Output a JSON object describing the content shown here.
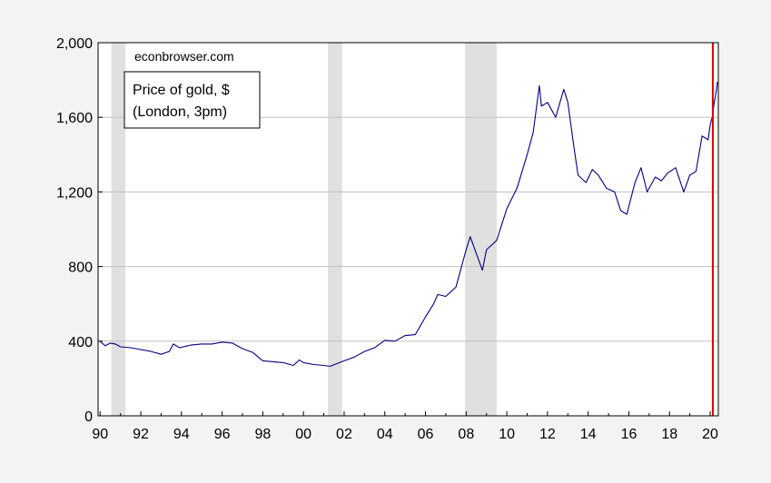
{
  "chart_data": {
    "type": "line",
    "title": "",
    "xlabel": "",
    "ylabel": "",
    "xlim": [
      1989.9,
      2020.4
    ],
    "ylim": [
      0,
      2000
    ],
    "y_ticks": [
      0,
      400,
      800,
      1200,
      1600,
      2000
    ],
    "y_tick_labels": [
      "0",
      "400",
      "800",
      "1,200",
      "1,600",
      "2,000"
    ],
    "x_ticks": [
      1990,
      1992,
      1994,
      1996,
      1998,
      2000,
      2002,
      2004,
      2006,
      2008,
      2010,
      2012,
      2014,
      2016,
      2018,
      2020
    ],
    "x_tick_labels": [
      "90",
      "92",
      "94",
      "96",
      "98",
      "00",
      "02",
      "04",
      "06",
      "08",
      "10",
      "12",
      "14",
      "16",
      "18",
      "20"
    ],
    "grid": true,
    "annotation": "econbrowser.com",
    "legend": {
      "line1": "Price of gold, $",
      "line2": "(London, 3pm)",
      "placement": "top-left"
    },
    "recession_shading": [
      [
        1990.55,
        1991.25
      ],
      [
        2001.2,
        2001.9
      ],
      [
        2007.95,
        2009.5
      ]
    ],
    "vertical_marker": {
      "x": 2020.13,
      "color": "#e00000"
    },
    "series": [
      {
        "color": "#000080",
        "x": [
          1990.0,
          1990.25,
          1990.5,
          1990.75,
          1991.0,
          1991.5,
          1992.0,
          1992.5,
          1993.0,
          1993.4,
          1993.6,
          1993.9,
          1994.5,
          1995.0,
          1995.5,
          1996.0,
          1996.5,
          1997.0,
          1997.5,
          1998.0,
          1998.5,
          1999.0,
          1999.5,
          1999.8,
          2000.0,
          2000.5,
          2001.0,
          2001.3,
          2002.0,
          2002.5,
          2003.0,
          2003.5,
          2004.0,
          2004.5,
          2005.0,
          2005.5,
          2006.0,
          2006.4,
          2006.6,
          2007.0,
          2007.5,
          2008.0,
          2008.2,
          2008.5,
          2008.8,
          2009.0,
          2009.5,
          2010.0,
          2010.5,
          2011.0,
          2011.3,
          2011.6,
          2011.7,
          2012.0,
          2012.4,
          2012.8,
          2013.0,
          2013.3,
          2013.5,
          2013.9,
          2014.2,
          2014.5,
          2014.9,
          2015.3,
          2015.6,
          2015.9,
          2016.3,
          2016.6,
          2016.9,
          2017.3,
          2017.6,
          2017.9,
          2018.3,
          2018.7,
          2019.0,
          2019.3,
          2019.6,
          2019.9,
          2020.0,
          2020.1,
          2020.2,
          2020.3,
          2020.35
        ],
        "values": [
          400,
          375,
          390,
          385,
          370,
          365,
          355,
          345,
          330,
          345,
          385,
          365,
          380,
          385,
          385,
          395,
          390,
          360,
          340,
          295,
          290,
          285,
          270,
          300,
          285,
          275,
          270,
          265,
          295,
          315,
          345,
          365,
          405,
          400,
          430,
          435,
          530,
          600,
          650,
          640,
          690,
          890,
          960,
          870,
          780,
          890,
          940,
          1110,
          1220,
          1400,
          1520,
          1770,
          1660,
          1680,
          1600,
          1750,
          1680,
          1440,
          1290,
          1250,
          1320,
          1290,
          1220,
          1200,
          1100,
          1080,
          1250,
          1330,
          1200,
          1280,
          1260,
          1300,
          1330,
          1200,
          1290,
          1310,
          1500,
          1480,
          1560,
          1600,
          1680,
          1740,
          1790
        ]
      }
    ]
  }
}
